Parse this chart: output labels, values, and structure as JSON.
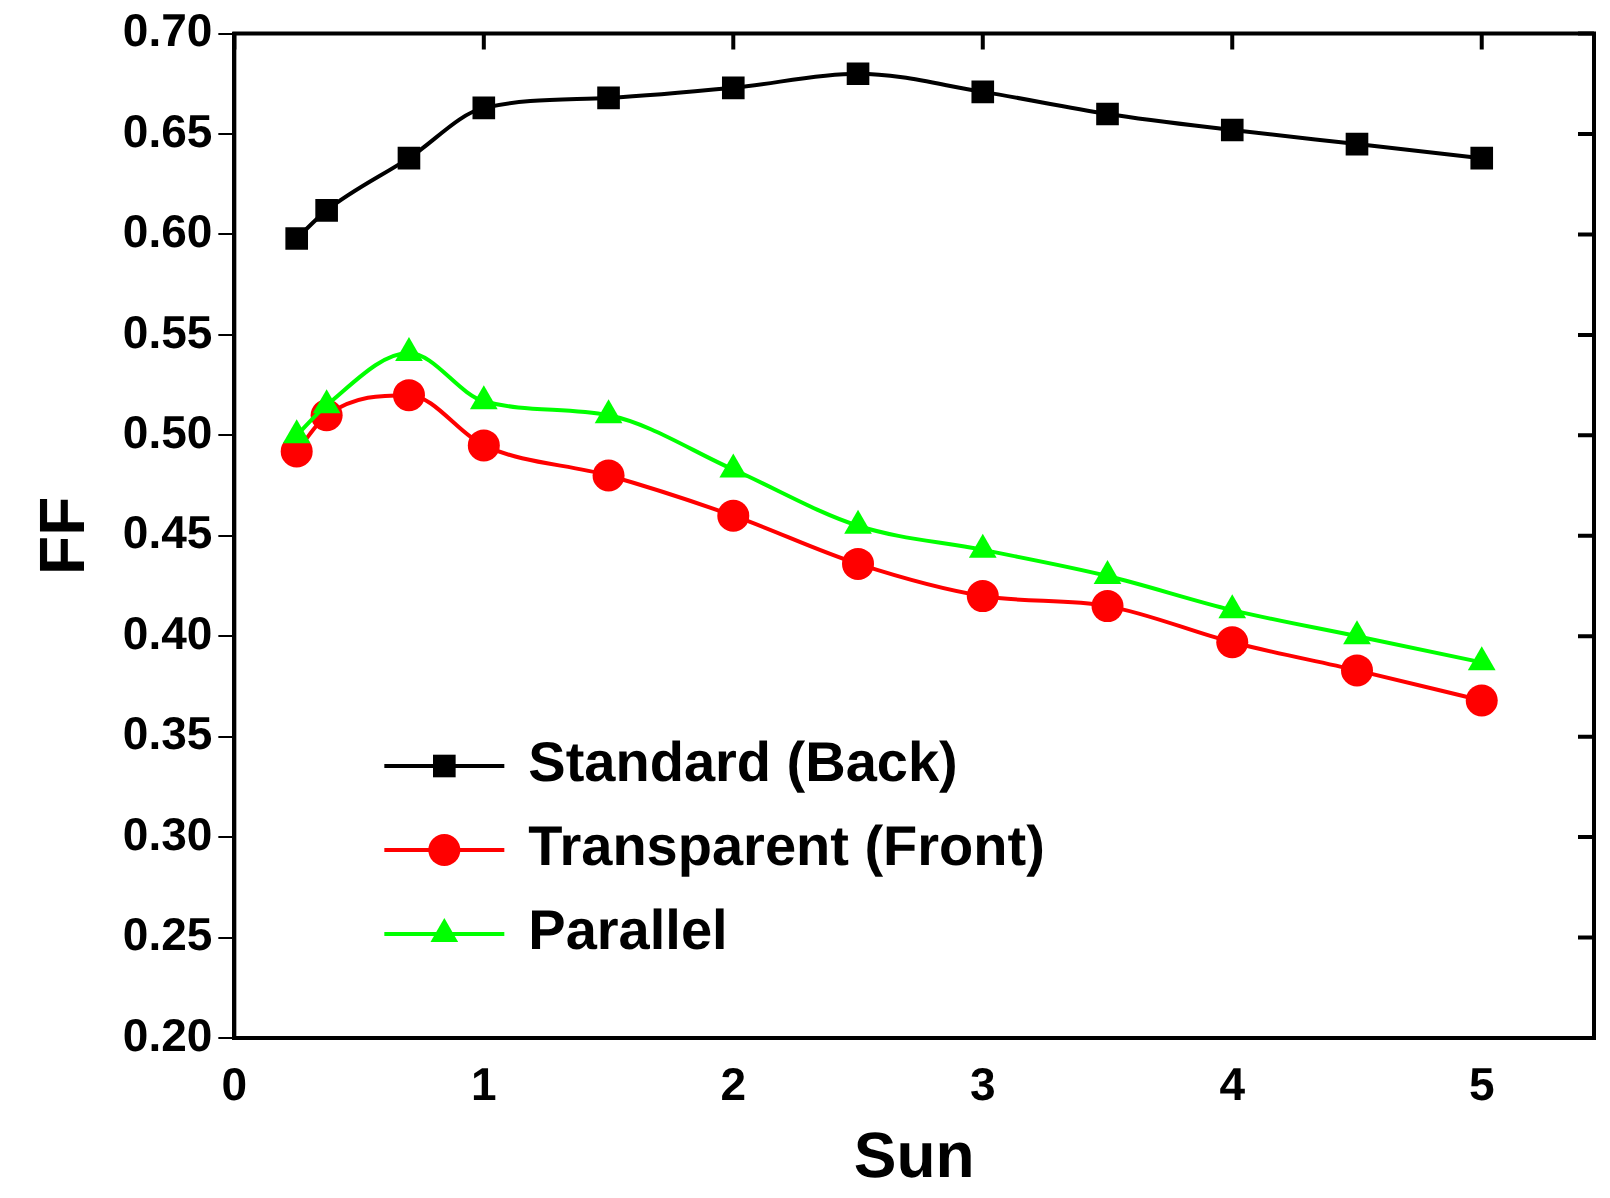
{
  "chart_data": {
    "type": "line",
    "xlabel": "Sun",
    "ylabel": "FF",
    "x": [
      0.25,
      0.37,
      0.7,
      1,
      1.5,
      2,
      2.5,
      3,
      3.5,
      4,
      4.5,
      5
    ],
    "series": [
      {
        "name": "Standard (Back)",
        "color": "#000000",
        "marker": "square",
        "values": [
          0.598,
          0.612,
          0.638,
          0.663,
          0.668,
          0.673,
          0.68,
          0.671,
          0.66,
          0.652,
          0.645,
          0.638
        ]
      },
      {
        "name": "Transparent (Front)",
        "color": "#ff0000",
        "marker": "circle",
        "values": [
          0.492,
          0.51,
          0.52,
          0.495,
          0.48,
          0.46,
          0.436,
          0.42,
          0.415,
          0.397,
          0.383,
          0.368
        ]
      },
      {
        "name": "Parallel",
        "color": "#00ff00",
        "marker": "triangle",
        "values": [
          0.5,
          0.515,
          0.541,
          0.517,
          0.51,
          0.483,
          0.455,
          0.443,
          0.43,
          0.413,
          0.4,
          0.387
        ]
      }
    ],
    "xlim": [
      0,
      5.45
    ],
    "xticks": [
      0,
      1,
      2,
      3,
      4,
      5
    ],
    "ylim": [
      0.2,
      0.7
    ],
    "yticks": [
      {
        "value": 0.2,
        "label": "0.20"
      },
      {
        "value": 0.25,
        "label": "0.25"
      },
      {
        "value": 0.3,
        "label": "0.30"
      },
      {
        "value": 0.35,
        "label": "0.35"
      },
      {
        "value": 0.4,
        "label": "0.40"
      },
      {
        "value": 0.45,
        "label": "0.45"
      },
      {
        "value": 0.5,
        "label": "0.50"
      },
      {
        "value": 0.55,
        "label": "0.55"
      },
      {
        "value": 0.6,
        "label": "0.60"
      },
      {
        "value": 0.65,
        "label": "0.65"
      },
      {
        "value": 0.7,
        "label": "0.70"
      }
    ],
    "grid": false,
    "legend": "bottom left",
    "line_style": "solid"
  }
}
